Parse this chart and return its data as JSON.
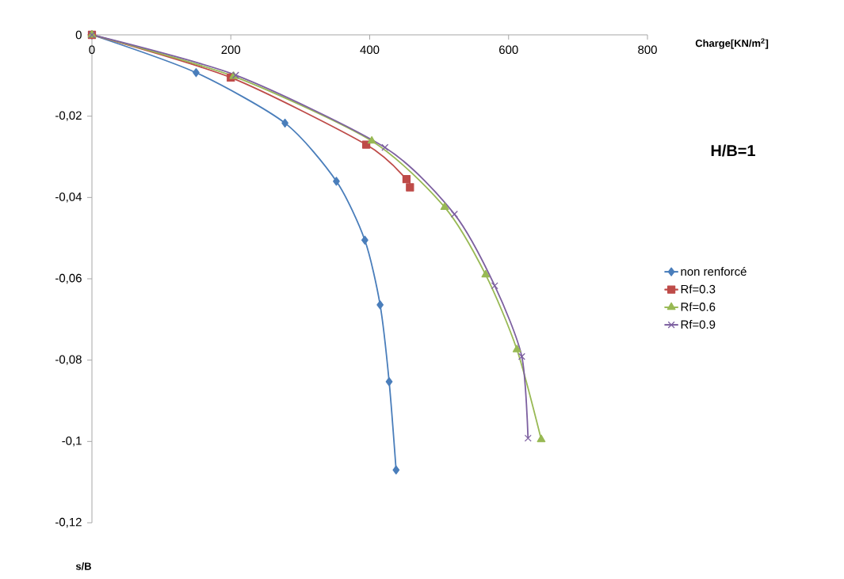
{
  "chart_data": {
    "type": "line",
    "title": "H/B=1",
    "xlabel": "Charge[KN/m$^{2}$]",
    "ylabel": "s/B",
    "xlim": [
      0,
      800
    ],
    "ylim": [
      -0.12,
      0
    ],
    "xticks": [
      0,
      200,
      400,
      600,
      800
    ],
    "yticks": [
      {
        "value": -0.12,
        "label": "-0,12"
      },
      {
        "value": -0.1,
        "label": "-0,1"
      },
      {
        "value": -0.08,
        "label": "-0,08"
      },
      {
        "value": -0.06,
        "label": "-0,06"
      },
      {
        "value": -0.04,
        "label": "-0,04"
      },
      {
        "value": -0.02,
        "label": "-0,02"
      },
      {
        "value": 0,
        "label": "0"
      }
    ],
    "legend": "right",
    "grid": false,
    "series": [
      {
        "name": "non renforcé",
        "color": "#4a7ebb",
        "marker": "diamond",
        "x": [
          0,
          150,
          278,
          352,
          393,
          415,
          428,
          438
        ],
        "values": [
          0,
          -0.0093,
          -0.0217,
          -0.036,
          -0.0505,
          -0.0664,
          -0.0853,
          -0.107
        ]
      },
      {
        "name": "Rf=0.3",
        "color": "#be4b48",
        "marker": "square",
        "x": [
          0,
          200,
          395,
          453,
          458
        ],
        "values": [
          0,
          -0.0105,
          -0.027,
          -0.0355,
          -0.0375
        ]
      },
      {
        "name": "Rf=0.6",
        "color": "#98b954",
        "marker": "triangle",
        "x": [
          0,
          204,
          403,
          508,
          567,
          612,
          647
        ],
        "values": [
          0,
          -0.0102,
          -0.0261,
          -0.0424,
          -0.059,
          -0.0774,
          -0.0995
        ]
      },
      {
        "name": "Rf=0.9",
        "color": "#7d60a0",
        "marker": "cross",
        "x": [
          0,
          207,
          422,
          522,
          580,
          619,
          628
        ],
        "values": [
          0,
          -0.0099,
          -0.0277,
          -0.0441,
          -0.0617,
          -0.0791,
          -0.0992
        ]
      }
    ]
  }
}
